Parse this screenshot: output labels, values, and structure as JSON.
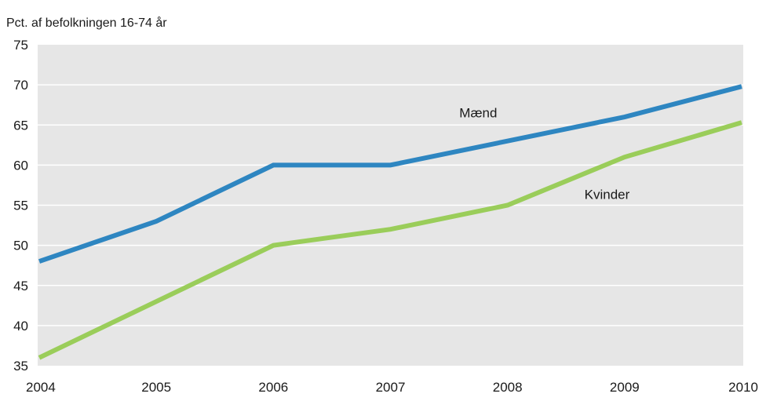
{
  "chart_data": {
    "type": "line",
    "title": "Pct. af befolkningen 16-74 år",
    "x": [
      "2004",
      "2005",
      "2006",
      "2007",
      "2008",
      "2009",
      "2010"
    ],
    "ylim": [
      35,
      75
    ],
    "yticks": [
      35,
      40,
      45,
      50,
      55,
      60,
      65,
      70,
      75
    ],
    "grid": true,
    "series": [
      {
        "name": "Mænd",
        "color": "#2e86c1",
        "values": [
          48,
          53,
          60,
          60,
          63,
          66,
          69.8
        ]
      },
      {
        "name": "Kvinder",
        "color": "#9acd5a",
        "values": [
          36,
          43,
          50,
          52,
          55,
          61,
          65.3
        ]
      }
    ],
    "colors": {
      "plot_background": "#e6e6e6",
      "gridline": "#ffffff"
    }
  }
}
